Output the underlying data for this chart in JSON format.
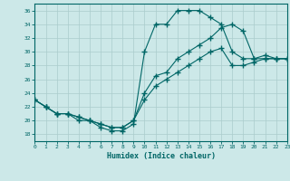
{
  "xlabel": "Humidex (Indice chaleur)",
  "bg_color": "#cce8e8",
  "line_color": "#006666",
  "grid_color": "#aacccc",
  "xlim": [
    0,
    23
  ],
  "ylim": [
    17,
    37
  ],
  "xticks": [
    0,
    1,
    2,
    3,
    4,
    5,
    6,
    7,
    8,
    9,
    10,
    11,
    12,
    13,
    14,
    15,
    16,
    17,
    18,
    19,
    20,
    21,
    22,
    23
  ],
  "yticks": [
    18,
    20,
    22,
    24,
    26,
    28,
    30,
    32,
    34,
    36
  ],
  "line_peak_x": [
    0,
    1,
    2,
    3,
    4,
    5,
    6,
    7,
    8,
    9,
    10,
    11,
    12,
    13,
    14,
    15,
    16,
    17,
    18,
    19,
    20,
    21,
    22,
    23
  ],
  "line_peak_y": [
    23,
    22,
    21,
    21,
    20,
    20,
    19,
    18.5,
    18.5,
    19.5,
    30,
    34,
    34,
    36,
    36,
    36,
    35,
    34,
    30,
    29,
    29,
    29.5,
    29,
    29
  ],
  "line_high_x": [
    0,
    1,
    2,
    3,
    4,
    5,
    6,
    7,
    8,
    9,
    10,
    11,
    12,
    13,
    14,
    15,
    16,
    17,
    18,
    19,
    20,
    21,
    22,
    23
  ],
  "line_high_y": [
    23,
    22,
    21,
    21,
    20.5,
    20,
    19.5,
    19,
    19,
    20,
    24,
    26.5,
    27,
    29,
    30,
    31,
    32,
    33.5,
    34,
    33,
    29,
    29,
    29,
    29
  ],
  "line_low_x": [
    0,
    1,
    2,
    3,
    4,
    5,
    6,
    7,
    8,
    9,
    10,
    11,
    12,
    13,
    14,
    15,
    16,
    17,
    18,
    19,
    20,
    21,
    22,
    23
  ],
  "line_low_y": [
    23,
    22,
    21,
    21,
    20.5,
    20,
    19.5,
    19,
    19,
    20,
    23,
    25,
    26,
    27,
    28,
    29,
    30,
    30.5,
    28,
    28,
    28.5,
    29,
    29,
    29
  ]
}
